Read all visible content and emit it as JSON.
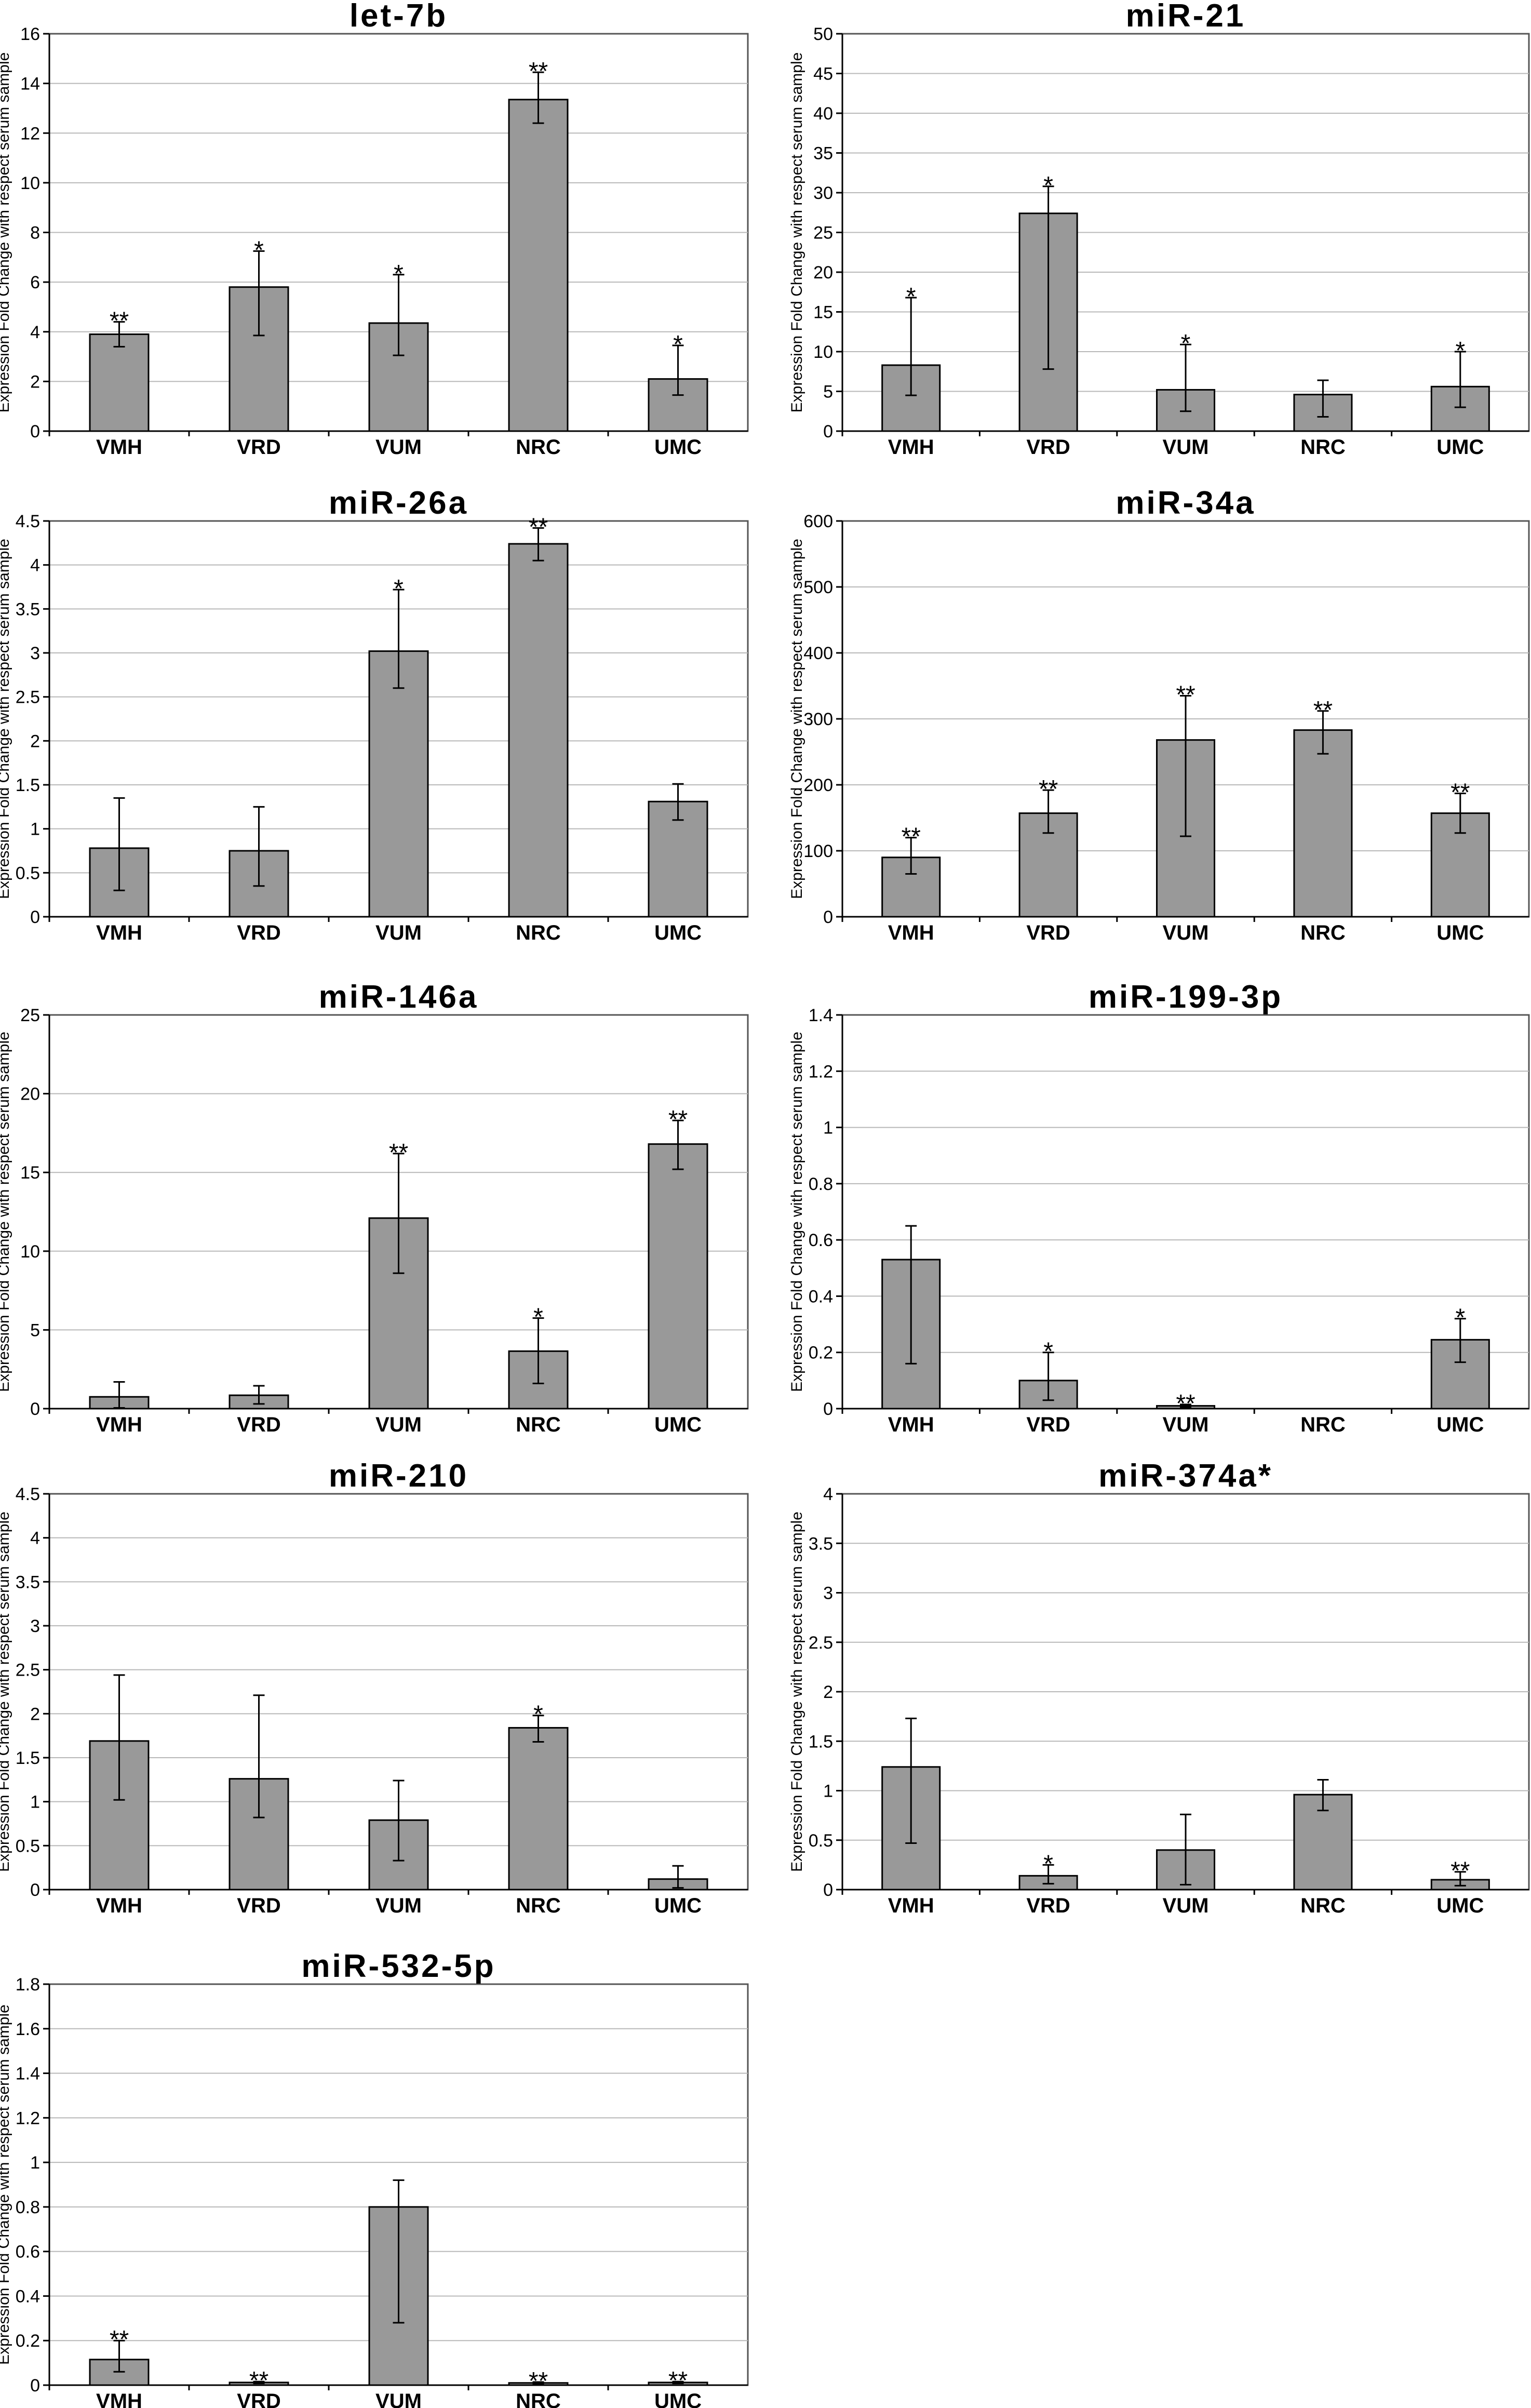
{
  "figure": {
    "bar_color": "#999999",
    "grid_color": "#b8b8b8",
    "frame_color": "#555555"
  },
  "chart_data": [
    {
      "type": "bar",
      "title": "let-7b",
      "xlabel": "",
      "ylabel": "Expression Fold Change with respect serum sample",
      "ylim": [
        0,
        16
      ],
      "yticks": [
        0,
        2,
        4,
        6,
        8,
        10,
        12,
        14,
        16
      ],
      "categories": [
        "VMH",
        "VRD",
        "VUM",
        "NRC",
        "UMC"
      ],
      "values": [
        3.9,
        5.8,
        4.35,
        13.35,
        2.1
      ],
      "err_low": [
        3.4,
        3.85,
        3.05,
        12.4,
        1.45
      ],
      "err_high": [
        4.4,
        7.25,
        6.3,
        14.45,
        3.45
      ],
      "significance": [
        "**",
        "*",
        "*",
        "**",
        "*"
      ]
    },
    {
      "type": "bar",
      "title": "miR-21",
      "xlabel": "",
      "ylabel": "Expression Fold Change with respect serum sample",
      "ylim": [
        0,
        50
      ],
      "yticks": [
        0,
        5,
        10,
        15,
        20,
        25,
        30,
        35,
        40,
        45,
        50
      ],
      "categories": [
        "VMH",
        "VRD",
        "VUM",
        "NRC",
        "UMC"
      ],
      "values": [
        8.3,
        27.4,
        5.2,
        4.6,
        5.6
      ],
      "err_low": [
        4.5,
        7.8,
        2.5,
        1.8,
        3.0
      ],
      "err_high": [
        16.8,
        30.8,
        10.9,
        6.4,
        10.0
      ],
      "significance": [
        "*",
        "*",
        "*",
        "",
        "*"
      ]
    },
    {
      "type": "bar",
      "title": "miR-26a",
      "xlabel": "",
      "ylabel": "Expression Fold Change with respect serum sample",
      "ylim": [
        0,
        4.5
      ],
      "yticks": [
        0,
        0.5,
        1,
        1.5,
        2,
        2.5,
        3,
        3.5,
        4,
        4.5
      ],
      "categories": [
        "VMH",
        "VRD",
        "VUM",
        "NRC",
        "UMC"
      ],
      "values": [
        0.78,
        0.75,
        3.02,
        4.24,
        1.31
      ],
      "err_low": [
        0.3,
        0.35,
        2.6,
        4.05,
        1.1
      ],
      "err_high": [
        1.35,
        1.25,
        3.72,
        4.42,
        1.51
      ],
      "significance": [
        "",
        "",
        "*",
        "**",
        ""
      ]
    },
    {
      "type": "bar",
      "title": "miR-34a",
      "xlabel": "",
      "ylabel": "Expression Fold Change with respect serum sample",
      "ylim": [
        0,
        600
      ],
      "yticks": [
        0,
        100,
        200,
        300,
        400,
        500,
        600
      ],
      "categories": [
        "VMH",
        "VRD",
        "VUM",
        "NRC",
        "UMC"
      ],
      "values": [
        90,
        157,
        268,
        283,
        157
      ],
      "err_low": [
        65,
        127,
        122,
        247,
        127
      ],
      "err_high": [
        120,
        192,
        335,
        312,
        187
      ],
      "significance": [
        "**",
        "**",
        "**",
        "**",
        "**"
      ]
    },
    {
      "type": "bar",
      "title": "miR-146a",
      "xlabel": "",
      "ylabel": "Expression Fold Change with respect serum sample",
      "ylim": [
        0,
        25
      ],
      "yticks": [
        0,
        5,
        10,
        15,
        20,
        25
      ],
      "categories": [
        "VMH",
        "VRD",
        "VUM",
        "NRC",
        "UMC"
      ],
      "values": [
        0.75,
        0.85,
        12.1,
        3.65,
        16.8
      ],
      "err_low": [
        0.05,
        0.3,
        8.6,
        1.6,
        15.2
      ],
      "err_high": [
        1.7,
        1.45,
        16.2,
        5.75,
        18.3
      ],
      "significance": [
        "",
        "",
        "**",
        "*",
        "**"
      ]
    },
    {
      "type": "bar",
      "title": "miR-199-3p",
      "xlabel": "",
      "ylabel": "Expression Fold Change with respect serum sample",
      "ylim": [
        0,
        1.4
      ],
      "yticks": [
        0,
        0.2,
        0.4,
        0.6,
        0.8,
        1,
        1.2,
        1.4
      ],
      "categories": [
        "VMH",
        "VRD",
        "VUM",
        "NRC",
        "UMC"
      ],
      "values": [
        0.53,
        0.1,
        0.01,
        0,
        0.245
      ],
      "err_low": [
        0.16,
        0.03,
        0.005,
        0,
        0.165
      ],
      "err_high": [
        0.65,
        0.2,
        0.015,
        0,
        0.32
      ],
      "significance": [
        "",
        "*",
        "**",
        "",
        "*"
      ]
    },
    {
      "type": "bar",
      "title": "miR-210",
      "xlabel": "",
      "ylabel": "Expression Fold Change with respect serum sample",
      "ylim": [
        0,
        4.5
      ],
      "yticks": [
        0,
        0.5,
        1,
        1.5,
        2,
        2.5,
        3,
        3.5,
        4,
        4.5
      ],
      "categories": [
        "VMH",
        "VRD",
        "VUM",
        "NRC",
        "UMC"
      ],
      "values": [
        1.69,
        1.26,
        0.79,
        1.84,
        0.12
      ],
      "err_low": [
        1.02,
        0.82,
        0.33,
        1.68,
        0.02
      ],
      "err_high": [
        2.44,
        2.21,
        1.24,
        1.98,
        0.27
      ],
      "significance": [
        "",
        "",
        "",
        "*",
        ""
      ]
    },
    {
      "type": "bar",
      "title": "miR-374a*",
      "xlabel": "",
      "ylabel": "Expression Fold Change with respect serum sample",
      "ylim": [
        0,
        4
      ],
      "yticks": [
        0,
        0.5,
        1,
        1.5,
        2,
        2.5,
        3,
        3.5,
        4
      ],
      "categories": [
        "VMH",
        "VRD",
        "VUM",
        "NRC",
        "UMC"
      ],
      "values": [
        1.24,
        0.14,
        0.4,
        0.96,
        0.1
      ],
      "err_low": [
        0.47,
        0.06,
        0.05,
        0.8,
        0.04
      ],
      "err_high": [
        1.73,
        0.25,
        0.76,
        1.11,
        0.18
      ],
      "significance": [
        "",
        "*",
        "",
        "",
        "**"
      ]
    },
    {
      "type": "bar",
      "title": "miR-532-5p",
      "xlabel": "",
      "ylabel": "Expression Fold Change with respect serum sample",
      "ylim": [
        0,
        1.8
      ],
      "yticks": [
        0,
        0.2,
        0.4,
        0.6,
        0.8,
        1,
        1.2,
        1.4,
        1.6,
        1.8
      ],
      "categories": [
        "VMH",
        "VRD",
        "VUM",
        "NRC",
        "UMC"
      ],
      "values": [
        0.115,
        0.012,
        0.8,
        0.01,
        0.012
      ],
      "err_low": [
        0.06,
        0.008,
        0.28,
        0.006,
        0.008
      ],
      "err_high": [
        0.2,
        0.016,
        0.92,
        0.014,
        0.016
      ],
      "significance": [
        "**",
        "**",
        "",
        "**",
        "**"
      ]
    }
  ]
}
